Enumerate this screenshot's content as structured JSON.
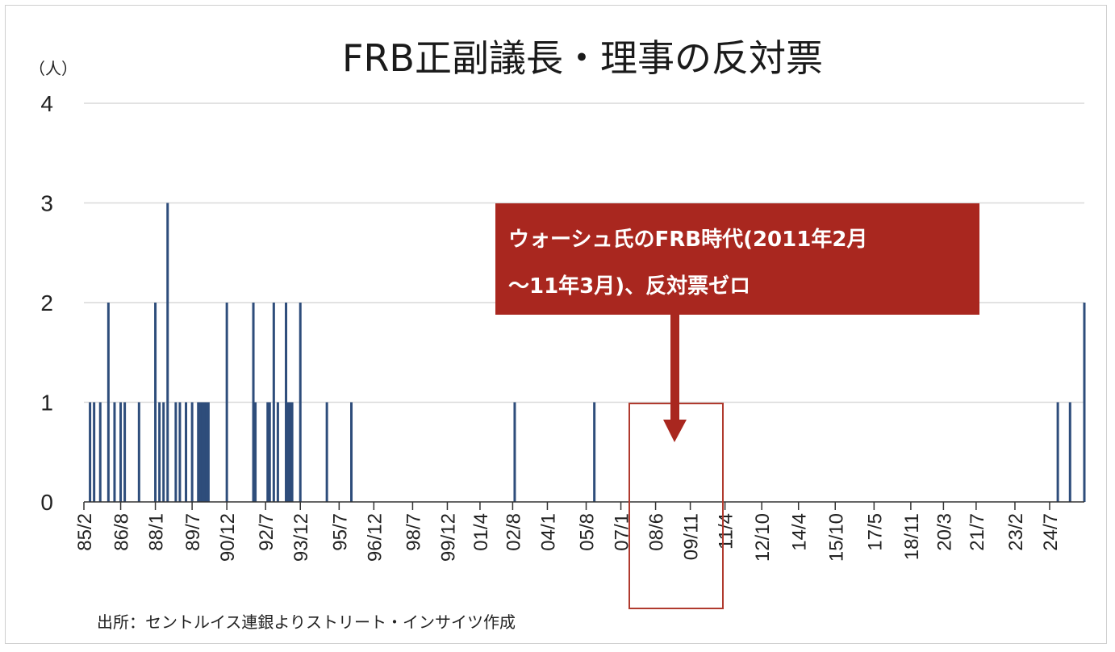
{
  "chart_data": {
    "type": "bar",
    "title": "FRB正副議長・理事の反対票",
    "ylabel": "（人）",
    "ylim": [
      0,
      4
    ],
    "yticks": [
      "0",
      "1",
      "2",
      "3",
      "4"
    ],
    "grid": true,
    "xticks": [
      "85/2",
      "86/8",
      "88/1",
      "89/7",
      "90/12",
      "92/7",
      "93/12",
      "95/7",
      "96/12",
      "98/7",
      "99/12",
      "01/4",
      "02/8",
      "04/1",
      "05/8",
      "07/1",
      "08/6",
      "09/11",
      "11/4",
      "12/10",
      "14/4",
      "15/10",
      "17/5",
      "18/11",
      "20/3",
      "21/7",
      "23/2",
      "24/7"
    ],
    "bar_color": "#2e4d7b",
    "values": [
      {
        "x": "85/5",
        "y": 1
      },
      {
        "x": "85/7",
        "y": 1
      },
      {
        "x": "85/10",
        "y": 1
      },
      {
        "x": "86/2",
        "y": 2
      },
      {
        "x": "86/5",
        "y": 1
      },
      {
        "x": "86/8",
        "y": 1
      },
      {
        "x": "86/10",
        "y": 1
      },
      {
        "x": "87/5",
        "y": 1
      },
      {
        "x": "88/1",
        "y": 2
      },
      {
        "x": "88/3",
        "y": 1
      },
      {
        "x": "88/5",
        "y": 1
      },
      {
        "x": "88/7",
        "y": 3
      },
      {
        "x": "88/11",
        "y": 1
      },
      {
        "x": "89/1",
        "y": 1
      },
      {
        "x": "89/4",
        "y": 1
      },
      {
        "x": "89/7",
        "y": 1
      },
      {
        "x": "89/10",
        "y": 1
      },
      {
        "x": "89/11",
        "y": 1
      },
      {
        "x": "89/12",
        "y": 1
      },
      {
        "x": "90/1",
        "y": 1
      },
      {
        "x": "90/2",
        "y": 1
      },
      {
        "x": "90/3",
        "y": 1
      },
      {
        "x": "90/12",
        "y": 2
      },
      {
        "x": "92/1",
        "y": 2
      },
      {
        "x": "92/2",
        "y": 1
      },
      {
        "x": "92/8",
        "y": 1
      },
      {
        "x": "92/9",
        "y": 1
      },
      {
        "x": "92/11",
        "y": 2
      },
      {
        "x": "93/1",
        "y": 1
      },
      {
        "x": "93/5",
        "y": 2
      },
      {
        "x": "93/6",
        "y": 1
      },
      {
        "x": "93/7",
        "y": 1
      },
      {
        "x": "93/8",
        "y": 1
      },
      {
        "x": "93/12",
        "y": 2
      },
      {
        "x": "95/1",
        "y": 1
      },
      {
        "x": "96/1",
        "y": 1
      },
      {
        "x": "02/9",
        "y": 1
      },
      {
        "x": "05/12",
        "y": 1
      },
      {
        "x": "24/11",
        "y": 1
      },
      {
        "x": "25/5",
        "y": 1
      },
      {
        "x": "25/12",
        "y": 2
      }
    ],
    "annotation": {
      "lines": [
        "ウォーシュ氏のFRB時代(2011年2月",
        "～11年3月)、反対票ゼロ"
      ],
      "box_color": "#a9271f",
      "highlight_color": "#b03a2e"
    },
    "source": "出所：セントルイス連銀よりストリート・インサイツ作成"
  }
}
